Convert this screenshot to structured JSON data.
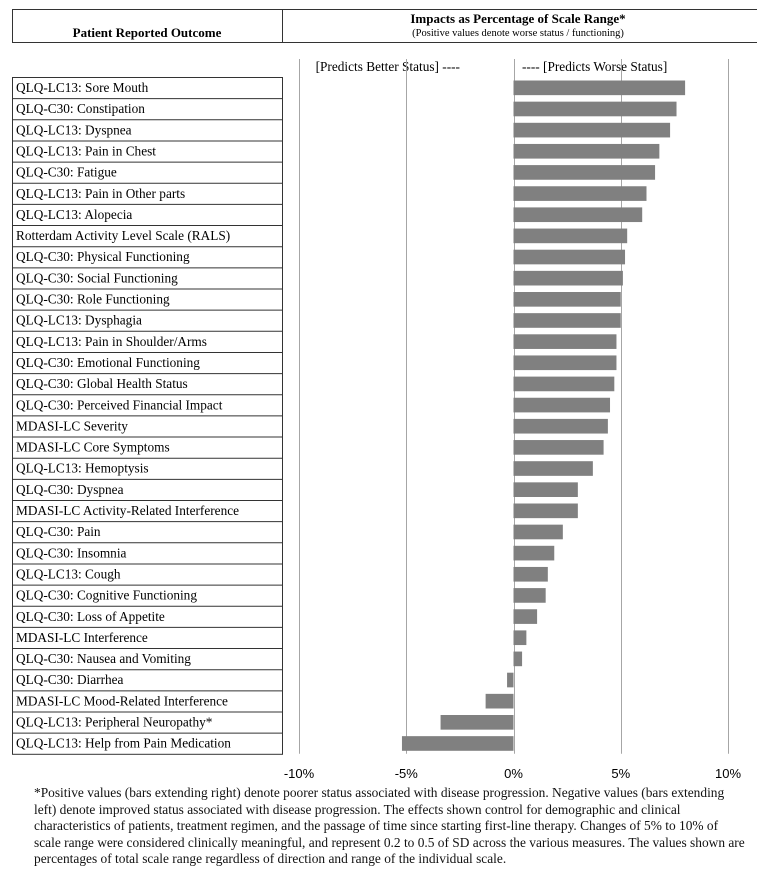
{
  "header": {
    "left_title": "Patient Reported Outcome",
    "right_title": "Impacts as Percentage of Scale Range*",
    "right_subtitle": "(Positive values denote worse status / functioning)",
    "better_label": "[Predicts Better Status] ----",
    "worse_label": "---- [Predicts Worse Status]"
  },
  "chart_data": {
    "type": "bar",
    "orientation": "horizontal",
    "categories": [
      "QLQ-LC13: Sore Mouth",
      "QLQ-C30: Constipation",
      "QLQ-LC13: Dyspnea",
      "QLQ-LC13: Pain in Chest",
      "QLQ-C30: Fatigue",
      "QLQ-LC13: Pain in Other parts",
      "QLQ-LC13: Alopecia",
      "Rotterdam Activity Level Scale (RALS)",
      "QLQ-C30: Physical Functioning",
      "QLQ-C30: Social Functioning",
      "QLQ-C30: Role Functioning",
      "QLQ-LC13: Dysphagia",
      "QLQ-LC13: Pain in Shoulder/Arms",
      "QLQ-C30: Emotional Functioning",
      "QLQ-C30: Global Health Status",
      "QLQ-C30: Perceived Financial Impact",
      "MDASI-LC Severity",
      "MDASI-LC Core Symptoms",
      "QLQ-LC13: Hemoptysis",
      "QLQ-C30: Dyspnea",
      "MDASI-LC Activity-Related Interference",
      "QLQ-C30: Pain",
      "QLQ-C30: Insomnia",
      "QLQ-LC13: Cough",
      "QLQ-C30: Cognitive Functioning",
      "QLQ-C30: Loss of Appetite",
      "MDASI-LC Interference",
      "QLQ-C30: Nausea and Vomiting",
      "QLQ-C30: Diarrhea",
      "MDASI-LC Mood-Related Interference",
      "QLQ-LC13: Peripheral Neuropathy*",
      "QLQ-LC13: Help from Pain Medication"
    ],
    "values": [
      8.0,
      7.6,
      7.3,
      6.8,
      6.6,
      6.2,
      6.0,
      5.3,
      5.2,
      5.1,
      5.0,
      5.0,
      4.8,
      4.8,
      4.7,
      4.5,
      4.4,
      4.2,
      3.7,
      3.0,
      3.0,
      2.3,
      1.9,
      1.6,
      1.5,
      1.1,
      0.6,
      0.4,
      -0.3,
      -1.3,
      -3.4,
      -5.2
    ],
    "xlim": [
      -10,
      10
    ],
    "xticks": [
      -10,
      -5,
      0,
      5,
      10
    ],
    "xtick_labels": [
      "-10%",
      "-5%",
      "0%",
      "5%",
      "10%"
    ],
    "grid": "vertical",
    "bar_color": "#808080"
  },
  "footnote": "*Positive values (bars extending right) denote poorer status associated with disease progression.  Negative values (bars extending left) denote improved status associated with disease progression.  The effects shown control for demographic and clinical characteristics of patients, treatment regimen, and the passage of time since starting first-line therapy.  Changes of 5% to 10% of scale range were considered clinically meaningful, and represent 0.2 to 0.5 of SD across the various measures.  The values shown are percentages of total scale range regardless of direction and range of the individual scale."
}
